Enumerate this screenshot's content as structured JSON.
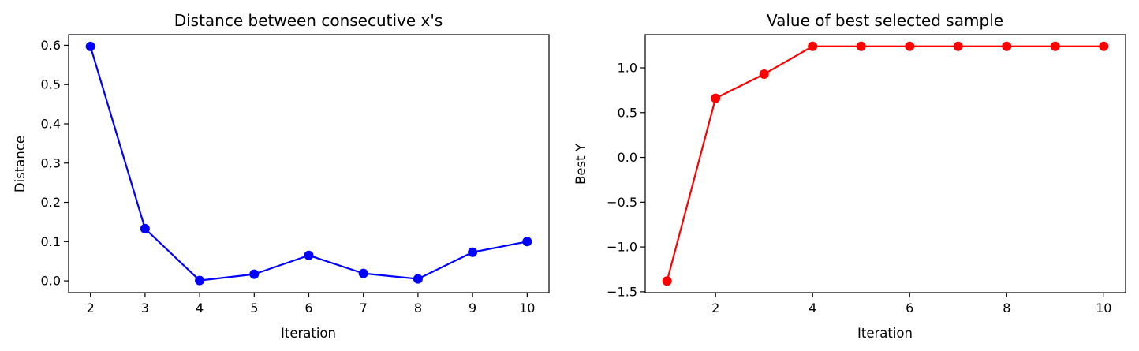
{
  "chart_data": [
    {
      "type": "line",
      "title": "Distance between consecutive x's",
      "xlabel": "Iteration",
      "ylabel": "Distance",
      "x": [
        2,
        3,
        4,
        5,
        6,
        7,
        8,
        9,
        10
      ],
      "series": [
        {
          "values": [
            0.597,
            0.133,
            0.001,
            0.017,
            0.065,
            0.019,
            0.005,
            0.073,
            0.1
          ],
          "color": "#0000ff"
        }
      ],
      "xlim": [
        1.6,
        10.4
      ],
      "ylim": [
        -0.03,
        0.627
      ],
      "xticks": [
        2,
        3,
        4,
        5,
        6,
        7,
        8,
        9,
        10
      ],
      "xtick_labels": [
        "2",
        "3",
        "4",
        "5",
        "6",
        "7",
        "8",
        "9",
        "10"
      ],
      "yticks": [
        0.0,
        0.1,
        0.2,
        0.3,
        0.4,
        0.5,
        0.6
      ],
      "ytick_labels": [
        "0.0",
        "0.1",
        "0.2",
        "0.3",
        "0.4",
        "0.5",
        "0.6"
      ],
      "grid": false,
      "marker": "circle"
    },
    {
      "type": "line",
      "title": "Value of best selected sample",
      "xlabel": "Iteration",
      "ylabel": "Best Y",
      "x": [
        1,
        2,
        3,
        4,
        5,
        6,
        7,
        8,
        9,
        10
      ],
      "series": [
        {
          "values": [
            -1.38,
            0.66,
            0.93,
            1.24,
            1.24,
            1.24,
            1.24,
            1.24,
            1.24,
            1.24
          ],
          "color": "#ff0000"
        }
      ],
      "xlim": [
        0.55,
        10.45
      ],
      "ylim": [
        -1.51,
        1.37
      ],
      "xticks": [
        2,
        4,
        6,
        8,
        10
      ],
      "xtick_labels": [
        "2",
        "4",
        "6",
        "8",
        "10"
      ],
      "yticks": [
        -1.5,
        -1.0,
        -0.5,
        0.0,
        0.5,
        1.0
      ],
      "ytick_labels": [
        "−1.5",
        "−1.0",
        "−0.5",
        "0.0",
        "0.5",
        "1.0"
      ],
      "grid": false,
      "marker": "circle"
    }
  ]
}
